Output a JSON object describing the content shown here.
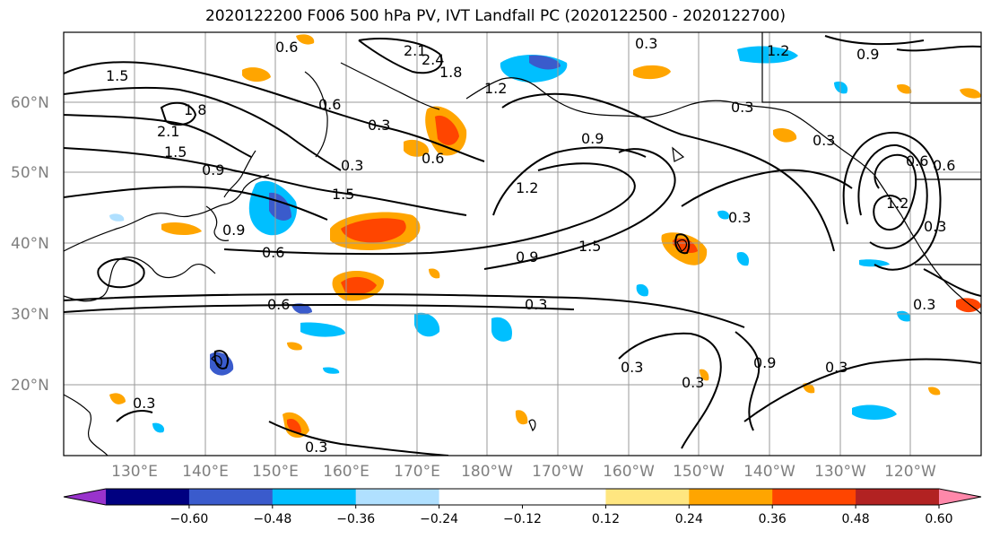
{
  "title": "2020122200 F006 500 hPa PV, IVT Landfall PC (2020122500 - 2020122700)",
  "map": {
    "lat_labels": [
      "60°N",
      "50°N",
      "40°N",
      "30°N",
      "20°N"
    ],
    "lon_labels": [
      "130°E",
      "140°E",
      "150°E",
      "160°E",
      "170°E",
      "180°W",
      "170°W",
      "160°W",
      "150°W",
      "140°W",
      "130°W",
      "120°W"
    ],
    "contour_labels": [
      "0.6",
      "2.1",
      "2.4",
      "1.8",
      "1.2",
      "0.3",
      "0.9",
      "1.2",
      "1.5",
      "0.6",
      "0.3",
      "0.6",
      "0.9",
      "1.8",
      "2.1",
      "1.5",
      "0.9",
      "1.5",
      "1.2",
      "0.6",
      "0.9",
      "1.5",
      "0.3",
      "0.3",
      "0.6",
      "0.3",
      "0.9",
      "0.3",
      "0.3",
      "0.3",
      "0.3",
      "0.3",
      "0.6",
      "0.3",
      "0.3",
      "1.2",
      "0.9",
      "0.3",
      "0.3",
      "0.6"
    ]
  },
  "colorbar": {
    "ticks": [
      "−0.60",
      "−0.48",
      "−0.36",
      "−0.24",
      "−0.12",
      "0.12",
      "0.24",
      "0.36",
      "0.48",
      "0.60"
    ],
    "colors": {
      "under": "#9933cc",
      "bins": [
        "#000080",
        "#3a5bcc",
        "#00bfff",
        "#b0e0ff",
        "#ffffff",
        "#ffffff",
        "#ffe680",
        "#ffa500",
        "#ff4500",
        "#b22222"
      ],
      "over": "#ff88aa"
    }
  },
  "shading_colors": {
    "neg_light": "#b0e0ff",
    "neg_mid": "#00bfff",
    "neg_dark": "#3a5bcc",
    "pos_light": "#ffe680",
    "pos_mid": "#ffa500",
    "pos_dark": "#ff4500"
  }
}
